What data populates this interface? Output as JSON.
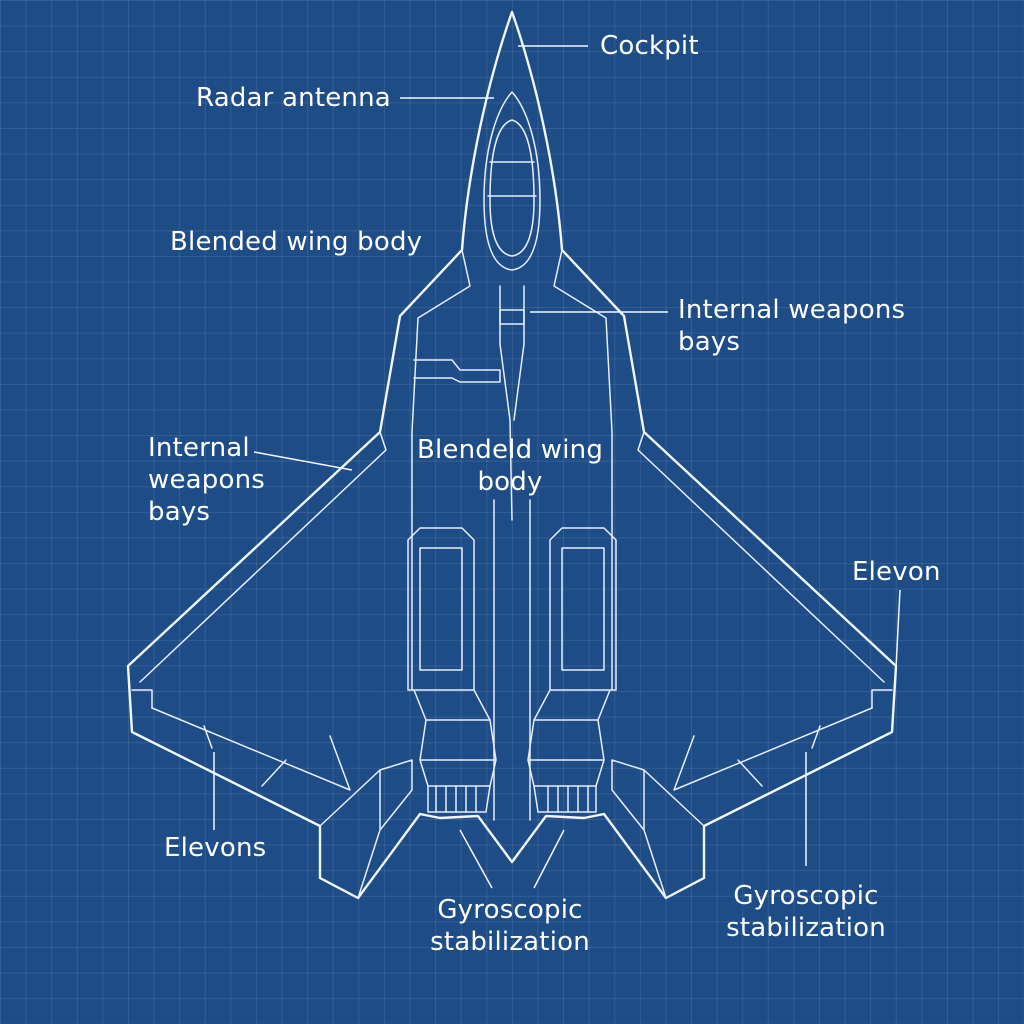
{
  "diagram": {
    "labels": {
      "cockpit": "Cockpit",
      "radar_antenna": "Radar antenna",
      "blended_wing_body_top": "Blended wing body",
      "internal_weapons_bays_right": "Internal weapons\nbays",
      "internal_weapons_bays_left": "Internal\nweapons\nbays",
      "blended_wing_body_center": "Blendeld wing\nbody",
      "elevon_right": "Elevon",
      "elevons_left": "Elevons",
      "gyroscopic_stabilization_center": "Gyroscopic\nstabilization",
      "gyroscopic_stabilization_right": "Gyroscopic\nstabilization"
    },
    "colors": {
      "background": "#1d4c86",
      "lines": "#f2f7ff"
    }
  }
}
